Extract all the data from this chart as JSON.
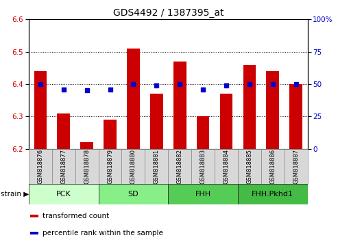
{
  "title": "GDS4492 / 1387395_at",
  "samples": [
    "GSM818876",
    "GSM818877",
    "GSM818878",
    "GSM818879",
    "GSM818880",
    "GSM818881",
    "GSM818882",
    "GSM818883",
    "GSM818884",
    "GSM818885",
    "GSM818886",
    "GSM818887"
  ],
  "bar_values": [
    6.44,
    6.31,
    6.22,
    6.29,
    6.51,
    6.37,
    6.47,
    6.3,
    6.37,
    6.46,
    6.44,
    6.4
  ],
  "percentile_values": [
    50,
    46,
    45,
    46,
    50,
    49,
    50,
    46,
    49,
    50,
    50,
    50
  ],
  "bar_bottom": 6.2,
  "ylim_left": [
    6.2,
    6.6
  ],
  "ylim_right": [
    0,
    100
  ],
  "yticks_left": [
    6.2,
    6.3,
    6.4,
    6.5,
    6.6
  ],
  "yticks_right": [
    0,
    25,
    50,
    75,
    100
  ],
  "bar_color": "#cc0000",
  "dot_color": "#0000cc",
  "groups": [
    {
      "label": "PCK",
      "start": 0,
      "end": 3,
      "color": "#ccffcc"
    },
    {
      "label": "SD",
      "start": 3,
      "end": 6,
      "color": "#88ee88"
    },
    {
      "label": "FHH",
      "start": 6,
      "end": 9,
      "color": "#55cc55"
    },
    {
      "label": "FHH.Pkhd1",
      "start": 9,
      "end": 12,
      "color": "#44bb44"
    }
  ],
  "legend_items": [
    {
      "label": "transformed count",
      "color": "#cc0000"
    },
    {
      "label": "percentile rank within the sample",
      "color": "#0000cc"
    }
  ],
  "grid_linestyle": "dotted",
  "bar_width": 0.55,
  "title_fontsize": 10,
  "tick_fontsize": 7.5,
  "sample_fontsize": 6.0
}
